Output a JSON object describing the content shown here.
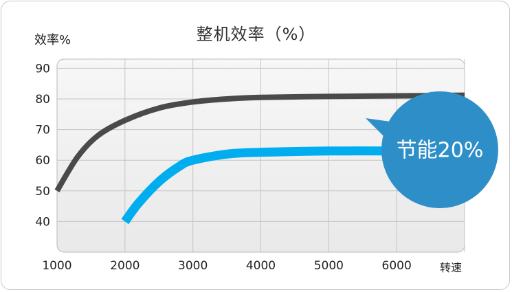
{
  "chart_data": {
    "type": "line",
    "title": "整机效率（%）",
    "ylabel": "效率%",
    "xlabel": "转速",
    "x_ticks": [
      "1000",
      "2000",
      "3000",
      "4000",
      "5000",
      "6000"
    ],
    "y_ticks": [
      "90",
      "80",
      "70",
      "60",
      "50",
      "40"
    ],
    "xlim": [
      1000,
      7000
    ],
    "ylim": [
      30,
      93
    ],
    "grid": true,
    "series": [
      {
        "color": "#4a4a4a",
        "x": [
          1000,
          1300,
          1600,
          2000,
          2500,
          3000,
          3500,
          4000,
          5000,
          6000,
          7000
        ],
        "y": [
          50,
          61,
          68,
          73,
          77,
          79,
          80,
          80.5,
          80.8,
          81,
          81.2
        ]
      },
      {
        "color": "#00aeef",
        "x": [
          2000,
          2200,
          2500,
          2800,
          3000,
          3500,
          4000,
          5000,
          6000
        ],
        "y": [
          40,
          46,
          53,
          58,
          60,
          62,
          62.6,
          63,
          63
        ]
      }
    ],
    "annotation": {
      "text": "节能20%",
      "color": "#2e8fc8"
    }
  }
}
